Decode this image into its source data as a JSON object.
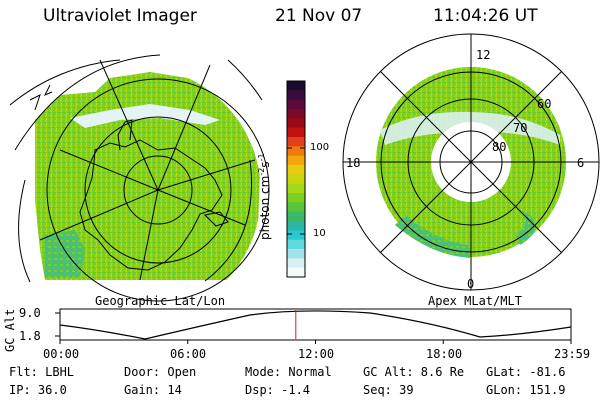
{
  "header": {
    "instrument": "Ultraviolet Imager",
    "date": "21 Nov 07",
    "time": "11:04:26 UT"
  },
  "left_map": {
    "title": "Geographic Lat/Lon"
  },
  "right_map": {
    "title": "Apex MLat/MLT",
    "lat_labels": [
      "60",
      "70",
      "80"
    ],
    "mlt_labels": {
      "top": "12",
      "bottom": "0",
      "left": "18",
      "right": "6"
    }
  },
  "colorbar": {
    "unit_label": "photon cm",
    "unit_sup1": "-2",
    "unit_mid": "s",
    "unit_sup2": "-1",
    "tick_labels": [
      "100",
      "10"
    ],
    "colors": [
      "#1a0b2e",
      "#3a0b40",
      "#5a0a3a",
      "#7a0a28",
      "#9a0a14",
      "#c21010",
      "#e0401a",
      "#f07a0c",
      "#f0a80a",
      "#e8cc10",
      "#c8d810",
      "#a4d818",
      "#7ed020",
      "#5ac43a",
      "#3cb86a",
      "#2ab8a4",
      "#28c8d0",
      "#60d8e0",
      "#a0e4ea",
      "#d8f0f2",
      "#f4fafa"
    ]
  },
  "alt_plot": {
    "ylabel": "GC Alt",
    "y_ticks": [
      "9.0",
      "1.8"
    ],
    "x_ticks": [
      "00:00",
      "06:00",
      "12:00",
      "18:00",
      "23:59"
    ],
    "current_time_hours": 11.074
  },
  "info": {
    "row1": [
      "Flt: LBHL",
      "Door: Open",
      "Mode: Normal",
      "GC Alt: 8.6 Re",
      "GLat: -81.6"
    ],
    "row2": [
      "IP: 36.0",
      "Gain: 14",
      "Dsp:   -1.4",
      "Seq: 39",
      "GLon: 151.9"
    ]
  }
}
